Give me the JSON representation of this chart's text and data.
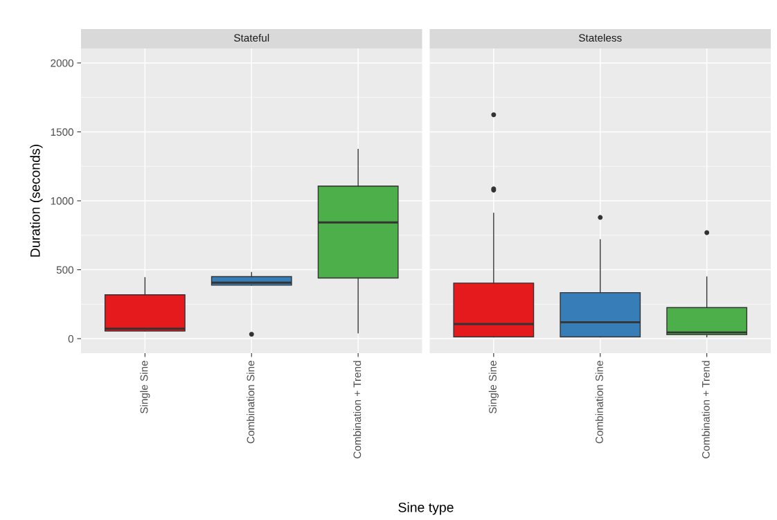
{
  "chart_data": [
    {
      "type": "box",
      "title": "Stateful",
      "xlabel": "Sine type",
      "ylabel": "Duration (seconds)",
      "categories": [
        "Single Sine",
        "Combination Sine",
        "Combination + Trend"
      ],
      "colors": [
        "#e41a1c",
        "#377eb8",
        "#4daf4a"
      ],
      "ylim": [
        -105,
        2105
      ],
      "yticks": [
        0,
        500,
        1000,
        1500,
        2000
      ],
      "grid": true,
      "boxes": [
        {
          "low": 55,
          "q1": 55,
          "median": 72,
          "q3": 318,
          "high": 443
        },
        {
          "low": 388,
          "q1": 388,
          "median": 406,
          "q3": 450,
          "high": 480,
          "outliers": [
            32
          ]
        },
        {
          "low": 42,
          "q1": 440,
          "median": 843,
          "q3": 1107,
          "high": 1373
        }
      ]
    },
    {
      "type": "box",
      "title": "Stateless",
      "categories": [
        "Single Sine",
        "Combination Sine",
        "Combination + Trend"
      ],
      "colors": [
        "#e41a1c",
        "#377eb8",
        "#4daf4a"
      ],
      "ylim": [
        -105,
        2105
      ],
      "yticks": [
        0,
        500,
        1000,
        1500,
        2000
      ],
      "grid": true,
      "tick_labels": "x",
      "boxes": [
        {
          "low": 13,
          "q1": 13,
          "median": 106,
          "q3": 403,
          "high": 910,
          "outliers": [
            1077,
            1087,
            1624
          ]
        },
        {
          "low": 13,
          "q1": 13,
          "median": 119,
          "q3": 334,
          "high": 718,
          "outliers": [
            879
          ]
        },
        {
          "low": 13,
          "q1": 29,
          "median": 45,
          "q3": 225,
          "high": 448,
          "outliers": [
            769
          ]
        }
      ]
    }
  ]
}
